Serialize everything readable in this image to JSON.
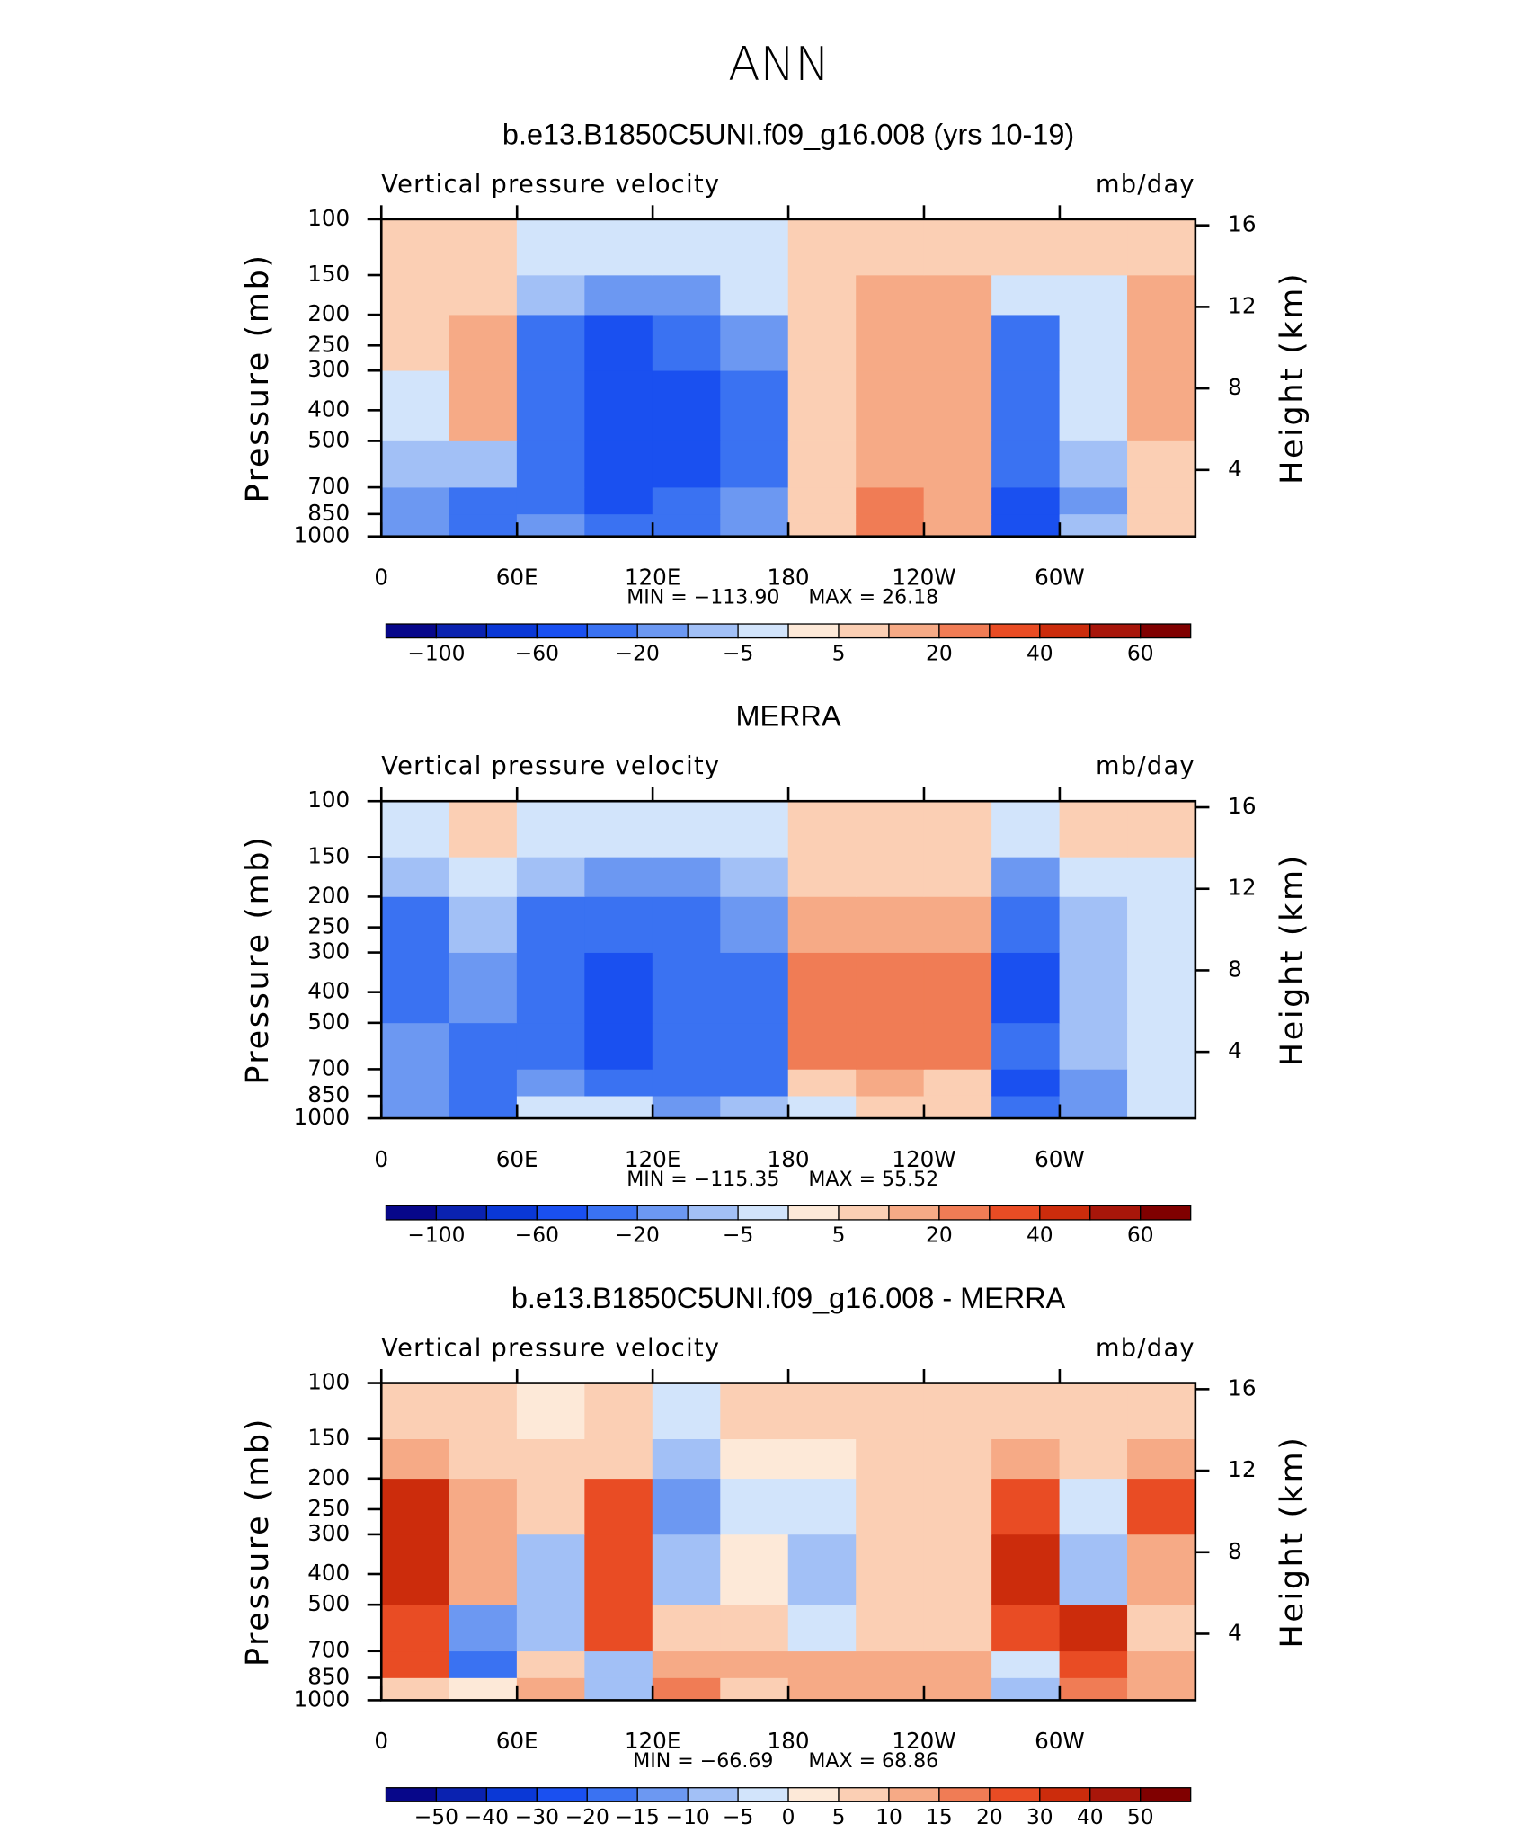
{
  "title": "ANN",
  "chart_data": [
    {
      "type": "contour",
      "title": "b.e13.B1850C5UNI.f09_g16.008 (yrs 10-19)",
      "subtitle": "Vertical pressure velocity",
      "units": "mb/day",
      "ylabel": "Pressure (mb)",
      "y2label": "Height (km)",
      "xlim": [
        0,
        360
      ],
      "xticks": [
        0,
        {
          "value": 60,
          "label": "60E"
        },
        {
          "value": 120,
          "label": "120E"
        },
        180,
        {
          "value": 240,
          "label": "120W"
        },
        {
          "value": 300,
          "label": "60W"
        }
      ],
      "ylim": [
        1000,
        100
      ],
      "yscale": "log",
      "yticks": [
        100,
        150,
        200,
        250,
        300,
        400,
        500,
        700,
        850,
        1000
      ],
      "y2lim": [
        0.74,
        16.3
      ],
      "y2ticks": [
        4,
        8,
        12,
        16
      ],
      "lon_edges": [
        0,
        30,
        60,
        90,
        120,
        150,
        180,
        210,
        240,
        270,
        300,
        330,
        360
      ],
      "p_edges": [
        1000,
        850,
        700,
        500,
        300,
        200,
        150,
        100
      ],
      "values": [
        [
          -20,
          -40,
          -20,
          -40,
          -30,
          -20,
          5,
          20,
          15,
          -60,
          -10,
          5
        ],
        [
          -20,
          -40,
          -30,
          -50,
          -40,
          -20,
          5,
          20,
          15,
          -60,
          -15,
          5
        ],
        [
          -10,
          -10,
          -40,
          -60,
          -50,
          -30,
          5,
          15,
          15,
          -40,
          -10,
          5
        ],
        [
          -5,
          10,
          -40,
          -60,
          -50,
          -30,
          5,
          15,
          15,
          -40,
          -5,
          10
        ],
        [
          5,
          10,
          -40,
          -60,
          -40,
          -20,
          5,
          15,
          15,
          -40,
          -5,
          15
        ],
        [
          5,
          5,
          -10,
          -20,
          -20,
          -5,
          5,
          10,
          10,
          -5,
          -5,
          10
        ],
        [
          5,
          5,
          -5,
          -5,
          -5,
          -5,
          5,
          5,
          5,
          5,
          5,
          5
        ]
      ],
      "min_text": "MIN = −113.90",
      "max_text": "MAX =   26.18",
      "levels": [
        -100,
        -80,
        -60,
        -40,
        -20,
        -10,
        -5,
        0,
        5,
        10,
        20,
        30,
        40,
        50,
        60
      ],
      "colorbar_ticks": [
        {
          "value": -100,
          "label": "−100"
        },
        {
          "value": -60,
          "label": "−60"
        },
        {
          "value": -20,
          "label": "−20"
        },
        {
          "value": -5,
          "label": "−5"
        },
        5,
        20,
        40,
        60
      ],
      "colors": [
        "#07078a",
        "#0a22b0",
        "#0a38d6",
        "#1a50f0",
        "#3a72f2",
        "#6c98f2",
        "#a2c0f6",
        "#d2e4fb",
        "#fde9d8",
        "#fbcfb4",
        "#f6aa86",
        "#f07c55",
        "#e94c24",
        "#cc2c0c",
        "#a8160a",
        "#800000"
      ]
    },
    {
      "type": "contour",
      "title": "MERRA",
      "subtitle": "Vertical pressure velocity",
      "units": "mb/day",
      "ylabel": "Pressure (mb)",
      "y2label": "Height (km)",
      "xlim": [
        0,
        360
      ],
      "xticks": [
        0,
        {
          "value": 60,
          "label": "60E"
        },
        {
          "value": 120,
          "label": "120E"
        },
        180,
        {
          "value": 240,
          "label": "120W"
        },
        {
          "value": 300,
          "label": "60W"
        }
      ],
      "ylim": [
        1000,
        100
      ],
      "yscale": "log",
      "yticks": [
        100,
        150,
        200,
        250,
        300,
        400,
        500,
        700,
        850,
        1000
      ],
      "y2lim": [
        0.74,
        16.3
      ],
      "y2ticks": [
        4,
        8,
        12,
        16
      ],
      "lon_edges": [
        0,
        30,
        60,
        90,
        120,
        150,
        180,
        210,
        240,
        270,
        300,
        330,
        360
      ],
      "p_edges": [
        1000,
        850,
        700,
        500,
        300,
        200,
        150,
        100
      ],
      "values": [
        [
          -20,
          -40,
          -5,
          -5,
          -20,
          -10,
          -5,
          5,
          5,
          -40,
          -20,
          -5
        ],
        [
          -20,
          -40,
          -20,
          -40,
          -40,
          -30,
          5,
          10,
          5,
          -50,
          -20,
          -5
        ],
        [
          -20,
          -40,
          -40,
          -60,
          -40,
          -30,
          20,
          20,
          20,
          -40,
          -10,
          -5
        ],
        [
          -30,
          -20,
          -40,
          -60,
          -40,
          -30,
          20,
          20,
          20,
          -50,
          -10,
          -5
        ],
        [
          -30,
          -10,
          -30,
          -40,
          -40,
          -20,
          10,
          10,
          10,
          -40,
          -10,
          -5
        ],
        [
          -10,
          -5,
          -10,
          -20,
          -20,
          -10,
          5,
          5,
          5,
          -20,
          -5,
          -5
        ],
        [
          -5,
          5,
          -5,
          -5,
          -5,
          -5,
          5,
          5,
          5,
          -5,
          5,
          5
        ]
      ],
      "min_text": "MIN = −115.35",
      "max_text": "MAX =   55.52",
      "levels": [
        -100,
        -80,
        -60,
        -40,
        -20,
        -10,
        -5,
        0,
        5,
        10,
        20,
        30,
        40,
        50,
        60
      ],
      "colorbar_ticks": [
        {
          "value": -100,
          "label": "−100"
        },
        {
          "value": -60,
          "label": "−60"
        },
        {
          "value": -20,
          "label": "−20"
        },
        {
          "value": -5,
          "label": "−5"
        },
        5,
        20,
        40,
        60
      ],
      "colors": [
        "#07078a",
        "#0a22b0",
        "#0a38d6",
        "#1a50f0",
        "#3a72f2",
        "#6c98f2",
        "#a2c0f6",
        "#d2e4fb",
        "#fde9d8",
        "#fbcfb4",
        "#f6aa86",
        "#f07c55",
        "#e94c24",
        "#cc2c0c",
        "#a8160a",
        "#800000"
      ]
    },
    {
      "type": "contour",
      "title": "b.e13.B1850C5UNI.f09_g16.008 - MERRA",
      "subtitle": "Vertical pressure velocity",
      "units": "mb/day",
      "ylabel": "Pressure (mb)",
      "y2label": "Height (km)",
      "xlim": [
        0,
        360
      ],
      "xticks": [
        0,
        {
          "value": 60,
          "label": "60E"
        },
        {
          "value": 120,
          "label": "120E"
        },
        180,
        {
          "value": 240,
          "label": "120W"
        },
        {
          "value": 300,
          "label": "60W"
        }
      ],
      "ylim": [
        1000,
        100
      ],
      "yscale": "log",
      "yticks": [
        100,
        150,
        200,
        250,
        300,
        400,
        500,
        700,
        850,
        1000
      ],
      "y2lim": [
        0.74,
        16.3
      ],
      "y2ticks": [
        4,
        8,
        12,
        16
      ],
      "lon_edges": [
        0,
        30,
        60,
        90,
        120,
        150,
        180,
        210,
        240,
        270,
        300,
        330,
        360
      ],
      "p_edges": [
        1000,
        850,
        700,
        500,
        300,
        200,
        150,
        100
      ],
      "values": [
        [
          5,
          0,
          10,
          -10,
          15,
          5,
          10,
          10,
          10,
          -10,
          15,
          10
        ],
        [
          20,
          -20,
          5,
          -10,
          10,
          10,
          10,
          10,
          10,
          -5,
          20,
          10
        ],
        [
          20,
          -15,
          -10,
          20,
          5,
          5,
          -5,
          5,
          5,
          20,
          30,
          5
        ],
        [
          30,
          10,
          -10,
          20,
          -10,
          0,
          -10,
          5,
          5,
          30,
          -10,
          10
        ],
        [
          30,
          10,
          5,
          20,
          -15,
          -5,
          -5,
          5,
          5,
          20,
          -5,
          20
        ],
        [
          10,
          5,
          5,
          5,
          -10,
          0,
          0,
          5,
          5,
          10,
          5,
          10
        ],
        [
          5,
          5,
          0,
          5,
          -5,
          5,
          5,
          5,
          5,
          5,
          5,
          5
        ]
      ],
      "min_text": "MIN = −66.69",
      "max_text": "MAX =   68.86",
      "levels": [
        -50,
        -40,
        -30,
        -20,
        -15,
        -10,
        -5,
        0,
        5,
        10,
        15,
        20,
        30,
        40,
        50
      ],
      "colorbar_ticks": [
        {
          "value": -50,
          "label": "−50"
        },
        {
          "value": -40,
          "label": "−40"
        },
        {
          "value": -30,
          "label": "−30"
        },
        {
          "value": -20,
          "label": "−20"
        },
        {
          "value": -15,
          "label": "−15"
        },
        {
          "value": -10,
          "label": "−10"
        },
        {
          "value": -5,
          "label": "−5"
        },
        0,
        5,
        10,
        15,
        20,
        30,
        40,
        50
      ],
      "colors": [
        "#07078a",
        "#0a22b0",
        "#0a38d6",
        "#1a50f0",
        "#3a72f2",
        "#6c98f2",
        "#a2c0f6",
        "#d2e4fb",
        "#fde9d8",
        "#fbcfb4",
        "#f6aa86",
        "#f07c55",
        "#e94c24",
        "#cc2c0c",
        "#a8160a",
        "#800000"
      ]
    }
  ]
}
